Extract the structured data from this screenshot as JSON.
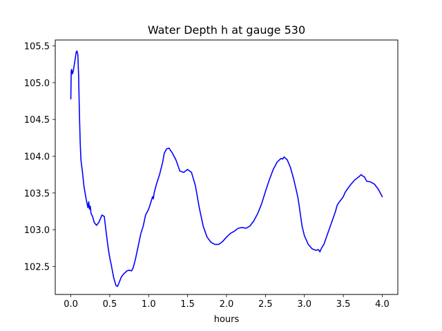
{
  "chart_data": {
    "type": "line",
    "title": "Water Depth h at gauge 530",
    "xlabel": "hours",
    "ylabel": "",
    "xlim": [
      -0.2,
      4.2
    ],
    "ylim": [
      102.12,
      105.58
    ],
    "x_ticks": [
      0.0,
      0.5,
      1.0,
      1.5,
      2.0,
      2.5,
      3.0,
      3.5,
      4.0
    ],
    "x_tick_labels": [
      "0.0",
      "0.5",
      "1.0",
      "1.5",
      "2.0",
      "2.5",
      "3.0",
      "3.5",
      "4.0"
    ],
    "y_ticks": [
      102.5,
      103.0,
      103.5,
      104.0,
      104.5,
      105.0,
      105.5
    ],
    "y_tick_labels": [
      "102.5",
      "103.0",
      "103.5",
      "104.0",
      "104.5",
      "105.0",
      "105.5"
    ],
    "grid": false,
    "series": [
      {
        "color": "#0000ff",
        "x": [
          0.0,
          0.005,
          0.01,
          0.02,
          0.03,
          0.05,
          0.07,
          0.08,
          0.09,
          0.1,
          0.11,
          0.12,
          0.13,
          0.15,
          0.16,
          0.17,
          0.18,
          0.2,
          0.22,
          0.23,
          0.24,
          0.25,
          0.26,
          0.28,
          0.3,
          0.33,
          0.36,
          0.38,
          0.4,
          0.43,
          0.45,
          0.48,
          0.5,
          0.52,
          0.55,
          0.58,
          0.6,
          0.62,
          0.65,
          0.68,
          0.72,
          0.75,
          0.78,
          0.8,
          0.83,
          0.86,
          0.9,
          0.93,
          0.96,
          1.0,
          1.03,
          1.05,
          1.06,
          1.07,
          1.1,
          1.14,
          1.18,
          1.2,
          1.23,
          1.26,
          1.3,
          1.35,
          1.4,
          1.45,
          1.5,
          1.55,
          1.6,
          1.65,
          1.7,
          1.75,
          1.8,
          1.85,
          1.9,
          1.95,
          2.0,
          2.05,
          2.1,
          2.15,
          2.2,
          2.25,
          2.3,
          2.35,
          2.4,
          2.45,
          2.5,
          2.55,
          2.6,
          2.65,
          2.7,
          2.72,
          2.74,
          2.78,
          2.82,
          2.86,
          2.9,
          2.92,
          2.93,
          2.95,
          2.97,
          3.0,
          3.05,
          3.1,
          3.15,
          3.18,
          3.2,
          3.22,
          3.25,
          3.3,
          3.35,
          3.4,
          3.42,
          3.45,
          3.48,
          3.5,
          3.52,
          3.55,
          3.6,
          3.65,
          3.7,
          3.73,
          3.75,
          3.77,
          3.8,
          3.85,
          3.9,
          3.95,
          4.0
        ],
        "values": [
          104.78,
          105.15,
          105.18,
          105.12,
          105.15,
          105.28,
          105.42,
          105.43,
          105.38,
          105.1,
          104.6,
          104.2,
          103.95,
          103.78,
          103.68,
          103.58,
          103.52,
          103.4,
          103.3,
          103.38,
          103.28,
          103.32,
          103.22,
          103.18,
          103.1,
          103.06,
          103.1,
          103.15,
          103.2,
          103.18,
          103.0,
          102.75,
          102.62,
          102.52,
          102.35,
          102.24,
          102.23,
          102.28,
          102.36,
          102.4,
          102.44,
          102.45,
          102.44,
          102.48,
          102.6,
          102.75,
          102.95,
          103.05,
          103.2,
          103.28,
          103.38,
          103.45,
          103.42,
          103.5,
          103.62,
          103.75,
          103.92,
          104.04,
          104.1,
          104.11,
          104.05,
          103.95,
          103.8,
          103.78,
          103.82,
          103.78,
          103.6,
          103.3,
          103.05,
          102.9,
          102.83,
          102.8,
          102.8,
          102.84,
          102.9,
          102.95,
          102.98,
          103.02,
          103.03,
          103.02,
          103.05,
          103.12,
          103.22,
          103.35,
          103.52,
          103.68,
          103.82,
          103.92,
          103.97,
          103.96,
          103.99,
          103.95,
          103.85,
          103.7,
          103.52,
          103.42,
          103.35,
          103.2,
          103.05,
          102.92,
          102.8,
          102.74,
          102.72,
          102.73,
          102.7,
          102.75,
          102.8,
          102.95,
          103.1,
          103.25,
          103.33,
          103.38,
          103.42,
          103.45,
          103.5,
          103.55,
          103.62,
          103.68,
          103.72,
          103.75,
          103.73,
          103.72,
          103.66,
          103.65,
          103.62,
          103.55,
          103.45
        ]
      }
    ]
  }
}
